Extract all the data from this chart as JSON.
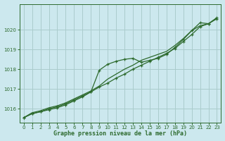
{
  "xlabel": "Graphe pression niveau de la mer (hPa)",
  "xlim": [
    -0.5,
    23.5
  ],
  "ylim": [
    1015.3,
    1021.3
  ],
  "yticks": [
    1016,
    1017,
    1018,
    1019,
    1020
  ],
  "xticks": [
    0,
    1,
    2,
    3,
    4,
    5,
    6,
    7,
    8,
    9,
    10,
    11,
    12,
    13,
    14,
    15,
    16,
    17,
    18,
    19,
    20,
    21,
    22,
    23
  ],
  "bg_color": "#cce8ee",
  "grid_color": "#aacccc",
  "line_color": "#2d6a2d",
  "series1": [
    1015.55,
    1015.75,
    1015.85,
    1016.0,
    1016.1,
    1016.25,
    1016.45,
    1016.65,
    1016.85,
    1017.95,
    1018.25,
    1018.4,
    1018.5,
    1018.55,
    1018.35,
    1018.45,
    1018.55,
    1018.75,
    1019.1,
    1019.5,
    1019.95,
    1020.35,
    1020.3,
    1020.55
  ],
  "series2": [
    1015.55,
    1015.75,
    1015.85,
    1015.95,
    1016.05,
    1016.2,
    1016.4,
    1016.6,
    1016.85,
    1017.1,
    1017.3,
    1017.55,
    1017.75,
    1018.0,
    1018.2,
    1018.4,
    1018.6,
    1018.8,
    1019.05,
    1019.4,
    1019.75,
    1020.15,
    1020.3,
    1020.6
  ],
  "series3": [
    1015.55,
    1015.8,
    1015.9,
    1016.05,
    1016.15,
    1016.3,
    1016.5,
    1016.7,
    1016.9,
    1017.15,
    1017.5,
    1017.75,
    1018.0,
    1018.2,
    1018.45,
    1018.6,
    1018.75,
    1018.9,
    1019.2,
    1019.55,
    1019.95,
    1020.2,
    1020.3,
    1020.6
  ]
}
